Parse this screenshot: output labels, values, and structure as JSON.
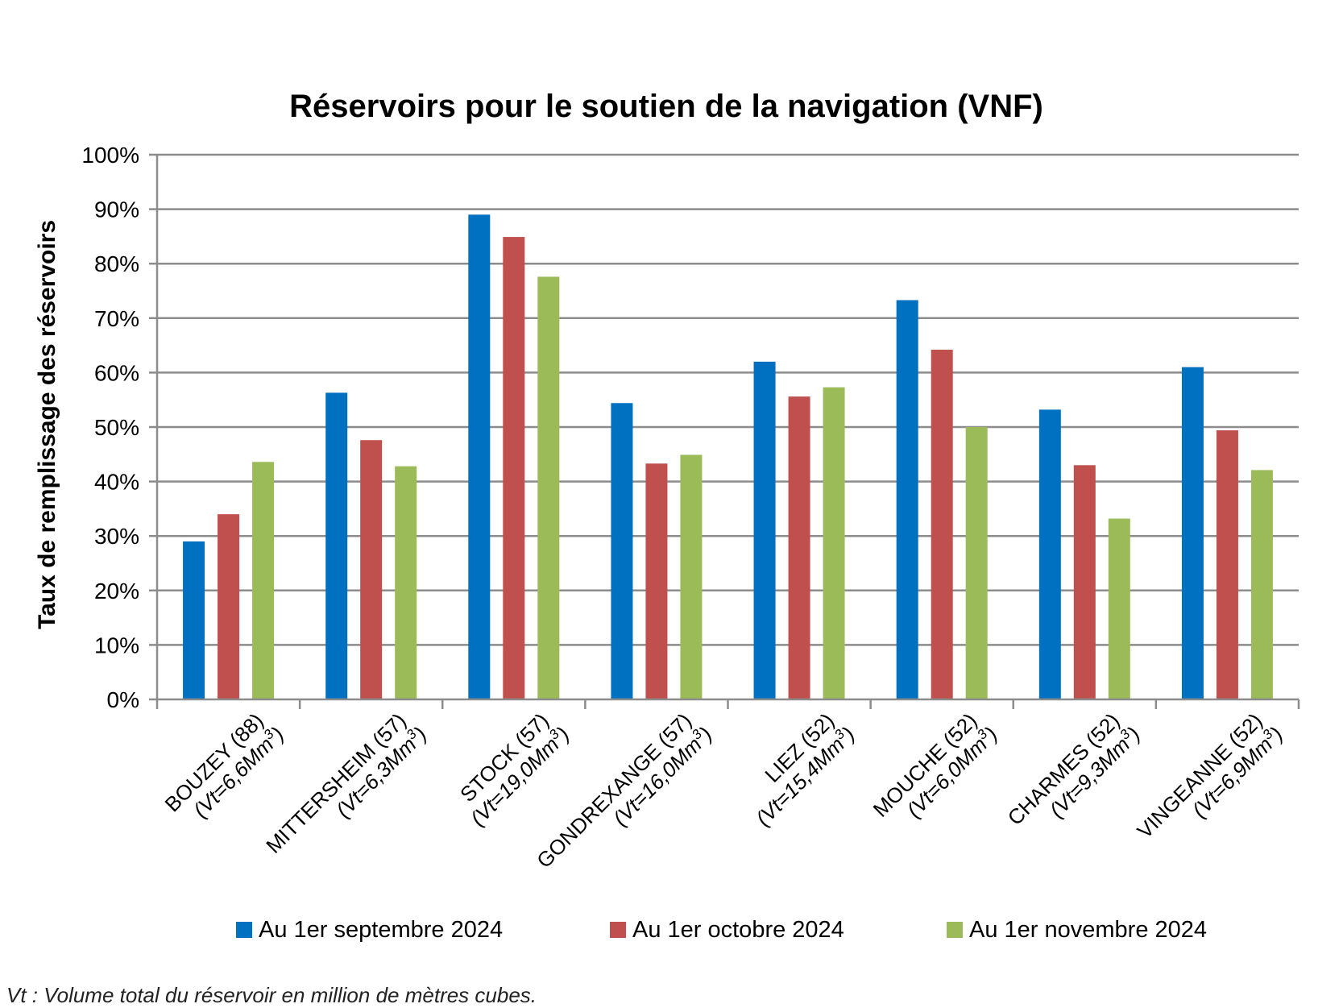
{
  "chart_data": {
    "type": "bar",
    "title": "Réservoirs pour le soutien de la navigation (VNF)",
    "ylabel": "Taux de remplissage des réservoirs",
    "xlabel": "",
    "ylim": [
      0,
      100
    ],
    "y_ticks": [
      "0%",
      "10%",
      "20%",
      "30%",
      "40%",
      "50%",
      "60%",
      "70%",
      "80%",
      "90%",
      "100%"
    ],
    "grid": true,
    "legend_position": "bottom",
    "categories": [
      {
        "name": "BOUZEY (88)",
        "vol_prefix": "(Vt=6,6Mm",
        "vol_sup": "3",
        "vol_suffix": ")"
      },
      {
        "name": "MITTERSHEIM (57)",
        "vol_prefix": "(Vt=6,3Mm",
        "vol_sup": "3",
        "vol_suffix": ")"
      },
      {
        "name": "STOCK (57)",
        "vol_prefix": "(Vt=19,0Mm",
        "vol_sup": "3",
        "vol_suffix": ")"
      },
      {
        "name": "GONDREXANGE (57)",
        "vol_prefix": "(Vt=16,0Mm",
        "vol_sup": "3",
        "vol_suffix": ")"
      },
      {
        "name": "LIEZ (52)",
        "vol_prefix": "(Vt=15,4Mm",
        "vol_sup": "3",
        "vol_suffix": ")"
      },
      {
        "name": "MOUCHE (52)",
        "vol_prefix": "(Vt=6,0Mm",
        "vol_sup": "3",
        "vol_suffix": ")"
      },
      {
        "name": "CHARMES (52)",
        "vol_prefix": "(Vt=9,3Mm",
        "vol_sup": "3",
        "vol_suffix": ")"
      },
      {
        "name": "VINGEANNE (52)",
        "vol_prefix": "(Vt=6,9Mm",
        "vol_sup": "3",
        "vol_suffix": ")"
      }
    ],
    "series": [
      {
        "name": "Au 1er septembre 2024",
        "color": "#0070c0",
        "values": [
          29,
          56.3,
          89,
          54.4,
          62,
          73.3,
          53.2,
          61
        ]
      },
      {
        "name": "Au 1er octobre 2024",
        "color": "#c0504d",
        "values": [
          34,
          47.6,
          84.9,
          43.3,
          55.6,
          64.2,
          43,
          49.4
        ]
      },
      {
        "name": "Au 1er novembre 2024",
        "color": "#9bbb59",
        "values": [
          43.6,
          42.8,
          77.6,
          44.9,
          57.3,
          50,
          33.2,
          42.1
        ]
      }
    ]
  },
  "footnote": "Vt : Volume total du réservoir en million de mètres cubes."
}
